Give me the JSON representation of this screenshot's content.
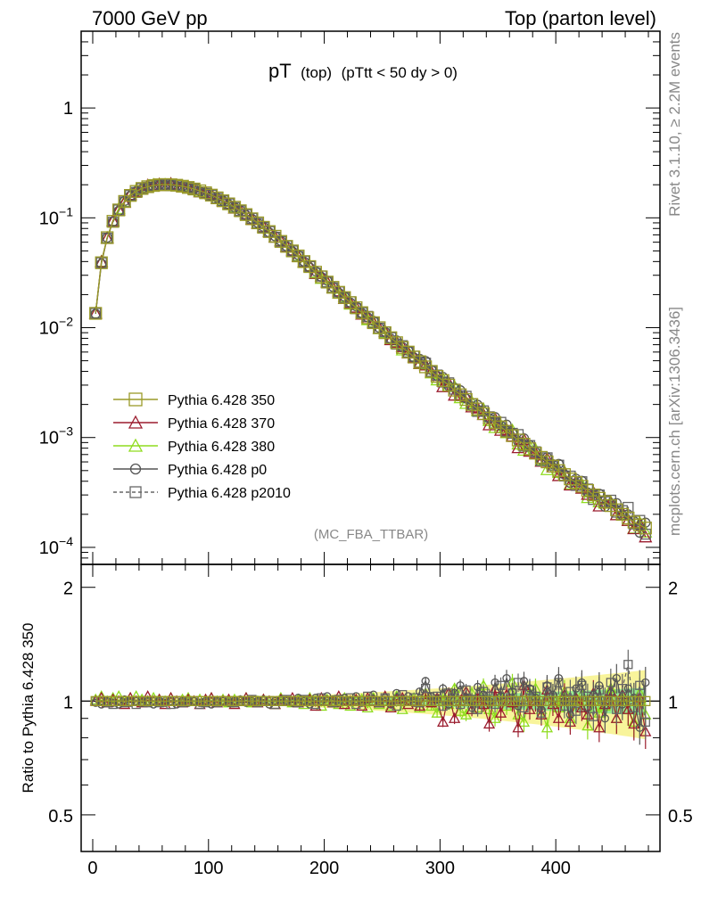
{
  "header": {
    "left": "7000 GeV pp",
    "right": "Top (parton level)"
  },
  "title": {
    "main": "pT",
    "sub1": "(top)",
    "sub2": "(pTtt < 50 dy > 0)"
  },
  "side_labels": {
    "rivet": "Rivet 3.1.10, ≥ 2.2M events",
    "mcplots": "mcplots.cern.ch [arXiv:1306.3436]"
  },
  "analysis_label": "(MC_FBA_TTBAR)",
  "ratio_ylabel": "Ratio to Pythia 6.428 350",
  "legend": [
    {
      "label": "Pythia 6.428 350",
      "color": "#9a9a28",
      "marker": "square",
      "dashed": false
    },
    {
      "label": "Pythia 6.428 370",
      "color": "#9b1c2e",
      "marker": "triangle",
      "dashed": false
    },
    {
      "label": "Pythia 6.428 380",
      "color": "#8fdc1e",
      "marker": "triangle",
      "dashed": false
    },
    {
      "label": "Pythia 6.428 p0",
      "color": "#555555",
      "marker": "circle",
      "dashed": false
    },
    {
      "label": "Pythia 6.428 p2010",
      "color": "#666666",
      "marker": "square",
      "dashed": true
    }
  ],
  "axes": {
    "x_ticks": [
      "0",
      "100",
      "200",
      "300",
      "400"
    ],
    "main_y_ticks": [
      {
        "base": "10",
        "exp": "−4",
        "value": 0.0001
      },
      {
        "base": "10",
        "exp": "−3",
        "value": 0.001
      },
      {
        "base": "10",
        "exp": "−2",
        "value": 0.01
      },
      {
        "base": "10",
        "exp": "−1",
        "value": 0.1
      },
      {
        "base": "1",
        "exp": "",
        "value": 1
      }
    ],
    "ratio_y_ticks": [
      "0.5",
      "1",
      "2"
    ]
  },
  "chart_data": {
    "type": "line",
    "xlim": [
      -10,
      490
    ],
    "main_ylim": [
      7e-05,
      5
    ],
    "main_yscale": "log",
    "ratio_ylim": [
      0.4,
      2.3
    ],
    "ratio_yscale": "log",
    "grid": false,
    "legend_position": "left",
    "x": [
      2.5,
      7.5,
      12.5,
      17.5,
      22.5,
      27.5,
      32.5,
      37.5,
      42.5,
      47.5,
      52.5,
      57.5,
      62.5,
      67.5,
      72.5,
      77.5,
      82.5,
      87.5,
      92.5,
      97.5,
      102.5,
      107.5,
      112.5,
      117.5,
      122.5,
      127.5,
      132.5,
      137.5,
      142.5,
      147.5,
      152.5,
      157.5,
      162.5,
      167.5,
      172.5,
      177.5,
      182.5,
      187.5,
      192.5,
      197.5,
      202.5,
      207.5,
      212.5,
      217.5,
      222.5,
      227.5,
      232.5,
      237.5,
      242.5,
      247.5,
      252.5,
      257.5,
      262.5,
      267.5,
      272.5,
      277.5,
      282.5,
      287.5,
      292.5,
      297.5,
      302.5,
      307.5,
      312.5,
      317.5,
      322.5,
      327.5,
      332.5,
      337.5,
      342.5,
      347.5,
      352.5,
      357.5,
      362.5,
      367.5,
      372.5,
      377.5,
      382.5,
      387.5,
      392.5,
      397.5,
      402.5,
      407.5,
      412.5,
      417.5,
      422.5,
      427.5,
      432.5,
      437.5,
      442.5,
      447.5,
      452.5,
      457.5,
      462.5,
      467.5,
      472.5,
      477.5
    ],
    "reference_values": [
      0.0135,
      0.039,
      0.066,
      0.093,
      0.118,
      0.141,
      0.16,
      0.174,
      0.185,
      0.192,
      0.197,
      0.2,
      0.201,
      0.2,
      0.198,
      0.194,
      0.189,
      0.183,
      0.176,
      0.169,
      0.161,
      0.152,
      0.143,
      0.134,
      0.125,
      0.116,
      0.107,
      0.098,
      0.09,
      0.082,
      0.075,
      0.068,
      0.061,
      0.055,
      0.05,
      0.045,
      0.04,
      0.036,
      0.032,
      0.029,
      0.026,
      0.0233,
      0.021,
      0.0188,
      0.0169,
      0.0152,
      0.0137,
      0.0123,
      0.0111,
      0.01,
      0.009,
      0.0081,
      0.0073,
      0.0066,
      0.006,
      0.0054,
      0.0049,
      0.0044,
      0.004,
      0.0036,
      0.0033,
      0.003,
      0.0027,
      0.00245,
      0.00222,
      0.002,
      0.00182,
      0.00165,
      0.0015,
      0.00137,
      0.00125,
      0.00114,
      0.00104,
      0.00095,
      0.00087,
      0.00079,
      0.00072,
      0.00066,
      0.0006,
      0.00055,
      0.0005,
      0.00046,
      0.00042,
      0.00039,
      0.00036,
      0.00033,
      0.0003,
      0.00028,
      0.00026,
      0.00024,
      0.00022,
      0.0002,
      0.000185,
      0.00017,
      0.00016,
      0.00015
    ],
    "series": [
      {
        "name": "Pythia 6.428 350",
        "ratio": [
          1,
          1,
          1,
          1,
          1,
          1,
          1,
          1,
          1,
          1,
          1,
          1,
          1,
          1,
          1,
          1,
          1,
          1,
          1,
          1,
          1,
          1,
          1,
          1,
          1,
          1,
          1,
          1,
          1,
          1,
          1,
          1,
          1,
          1,
          1,
          1,
          1,
          1,
          1,
          1,
          1,
          1,
          1,
          1,
          1,
          1,
          1,
          1,
          1,
          1,
          1,
          1,
          1,
          1,
          1,
          1,
          1,
          1,
          1,
          1,
          1,
          1,
          1,
          1,
          1,
          1,
          1,
          1,
          1,
          1,
          1,
          1,
          1,
          1,
          1,
          1,
          1,
          1,
          1,
          1,
          1,
          1,
          1,
          1,
          1,
          1,
          1,
          1,
          1,
          1,
          1,
          1,
          1,
          1,
          1,
          1
        ]
      },
      {
        "name": "Pythia 6.428 370",
        "ratio": [
          1,
          1.02,
          0.99,
          1.01,
          1,
          0.98,
          1.02,
          1,
          0.99,
          1.03,
          1,
          1.01,
          0.98,
          1.02,
          1,
          0.99,
          1.01,
          1,
          0.98,
          1.01,
          1.02,
          0.99,
          1,
          1.01,
          0.98,
          1,
          1.02,
          1,
          0.99,
          1.01,
          1,
          0.98,
          1.01,
          1,
          1.02,
          0.99,
          1,
          1.01,
          0.97,
          1.02,
          1,
          0.99,
          1.03,
          0.98,
          1,
          1.01,
          0.97,
          1.02,
          1,
          0.99,
          1.03,
          0.96,
          1.01,
          1.02,
          0.98,
          1,
          0.97,
          1.04,
          0.99,
          1.02,
          0.88,
          1.05,
          0.9,
          1,
          1.06,
          0.95,
          1.02,
          0.98,
          0.87,
          1.08,
          0.93,
          1.04,
          0.99,
          0.85,
          1.1,
          0.95,
          1,
          0.92,
          1.07,
          0.98,
          0.9,
          1.04,
          0.88,
          1.02,
          0.96,
          0.92,
          1.05,
          0.85,
          0.98,
          1.06,
          0.9,
          1.04,
          0.95,
          0.87,
          1.02,
          0.83
        ]
      },
      {
        "name": "Pythia 6.428 380",
        "ratio": [
          1.01,
          1.03,
          1,
          1.02,
          1.03,
          1,
          1.02,
          1.03,
          1.01,
          1,
          1.02,
          1.01,
          1,
          1.02,
          1,
          1.01,
          1.02,
          1,
          1.01,
          1,
          1.02,
          1,
          1.01,
          0.99,
          1.01,
          1,
          1.02,
          0.99,
          1,
          1.01,
          1,
          0.98,
          1.02,
          1,
          0.99,
          1.01,
          0.98,
          1.02,
          1,
          0.97,
          1.01,
          1,
          0.98,
          1.02,
          0.97,
          1,
          1.01,
          0.96,
          1.02,
          0.98,
          1,
          0.97,
          1.03,
          0.95,
          1,
          1.02,
          0.96,
          1.05,
          0.97,
          0.93,
          1.04,
          0.98,
          1.08,
          0.94,
          0.92,
          1.05,
          0.96,
          1.1,
          0.95,
          0.9,
          1.03,
          0.97,
          1.12,
          0.92,
          0.88,
          1.05,
          1.08,
          0.95,
          0.85,
          1.02,
          0.96,
          1.06,
          0.9,
          0.98,
          1.04,
          0.86,
          1,
          0.93,
          0.97,
          1.08,
          0.9,
          1.02,
          0.95,
          0.88,
          1.05,
          0.92
        ]
      },
      {
        "name": "Pythia 6.428 p0",
        "ratio": [
          0.99,
          0.98,
          1,
          0.99,
          0.98,
          1.01,
          0.99,
          1,
          0.99,
          1,
          0.98,
          1,
          0.99,
          1,
          0.98,
          1,
          0.99,
          1,
          0.99,
          1,
          0.98,
          1,
          1,
          0.99,
          1,
          1.01,
          0.99,
          1,
          1,
          1.01,
          0.98,
          1,
          1.01,
          1,
          0.99,
          1.02,
          1,
          0.98,
          1.02,
          1,
          1.03,
          1.01,
          0.99,
          1.02,
          1,
          1.03,
          0.99,
          1.01,
          1.04,
          1,
          1.02,
          0.98,
          1.05,
          1.01,
          1.03,
          0.99,
          1.06,
          1.13,
          1.03,
          1.01,
          1.08,
          0.98,
          1.05,
          1.1,
          1.02,
          0.96,
          1.09,
          1.04,
          1,
          1.12,
          1.03,
          1.15,
          1.06,
          0.97,
          1.13,
          1.08,
          1.02,
          0.95,
          1.1,
          1.04,
          1.15,
          1,
          0.92,
          1.08,
          1.12,
          0.96,
          1.04,
          1.1,
          0.9,
          1.05,
          1.15,
          0.98,
          1.08,
          1.02,
          0.85,
          1.12
        ]
      },
      {
        "name": "Pythia 6.428 p2010",
        "ratio": [
          1,
          1,
          0.99,
          0.98,
          1,
          0.99,
          1,
          0.98,
          1,
          0.99,
          1,
          0.99,
          1,
          0.98,
          1,
          0.99,
          1,
          1,
          0.98,
          0.99,
          1,
          0.99,
          1,
          1,
          0.99,
          1,
          1,
          1.01,
          0.99,
          1,
          1,
          0.98,
          1,
          1.01,
          1,
          0.99,
          1.01,
          1,
          0.98,
          1.02,
          1,
          0.99,
          1.01,
          1,
          1.02,
          0.98,
          1,
          1.03,
          1,
          0.99,
          1.02,
          1,
          0.97,
          1.04,
          1,
          1.02,
          0.99,
          1.08,
          1,
          1.03,
          0.97,
          1.05,
          1.02,
          0.98,
          1.07,
          1.01,
          0.95,
          1.06,
          1.03,
          0.98,
          1.1,
          1,
          1.05,
          1.12,
          0.96,
          1.07,
          1.03,
          0.93,
          1.09,
          1.02,
          1.12,
          0.97,
          1.06,
          0.94,
          1.1,
          1.03,
          0.91,
          1.07,
          1,
          1.12,
          0.95,
          1.08,
          1.25,
          0.96,
          1.1,
          0.88
        ]
      }
    ]
  }
}
